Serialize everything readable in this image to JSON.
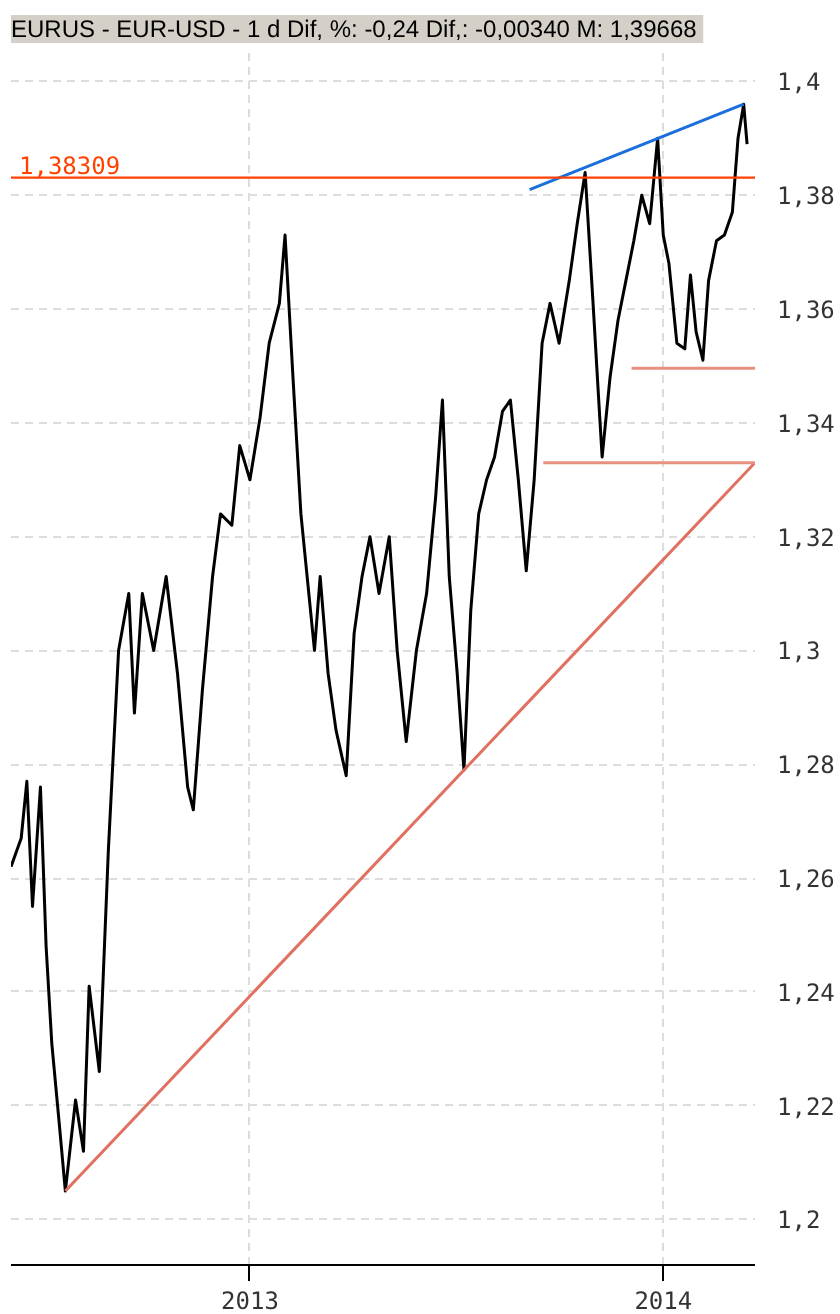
{
  "chart_data": {
    "type": "line",
    "title": "EURUS - EUR-USD -  1 d Dif, %: -0,24 Dif,: -0,00340 M: 1,39668",
    "x": [
      "2012-06-04",
      "2012-06-13",
      "2012-06-18",
      "2012-06-23",
      "2012-06-30",
      "2012-07-05",
      "2012-07-10",
      "2012-07-17",
      "2012-07-22",
      "2012-07-31",
      "2012-08-07",
      "2012-08-12",
      "2012-08-21",
      "2012-08-29",
      "2012-09-07",
      "2012-09-16",
      "2012-09-21",
      "2012-09-28",
      "2012-10-08",
      "2012-10-19",
      "2012-10-29",
      "2012-11-07",
      "2012-11-12",
      "2012-11-20",
      "2012-11-29",
      "2012-12-06",
      "2012-12-16",
      "2012-12-23",
      "2013-01-01",
      "2013-01-10",
      "2013-01-18",
      "2013-01-27",
      "2013-02-01",
      "2013-02-08",
      "2013-02-15",
      "2013-02-22",
      "2013-02-27",
      "2013-03-04",
      "2013-03-11",
      "2013-03-18",
      "2013-03-27",
      "2013-04-03",
      "2013-04-10",
      "2013-04-17",
      "2013-04-25",
      "2013-05-04",
      "2013-05-11",
      "2013-05-19",
      "2013-05-28",
      "2013-06-06",
      "2013-06-14",
      "2013-06-20",
      "2013-06-26",
      "2013-07-03",
      "2013-07-09",
      "2013-07-15",
      "2013-07-22",
      "2013-07-29",
      "2013-08-05",
      "2013-08-12",
      "2013-08-19",
      "2013-08-26",
      "2013-09-02",
      "2013-09-09",
      "2013-09-16",
      "2013-09-23",
      "2013-10-01",
      "2013-10-10",
      "2013-10-17",
      "2013-10-24",
      "2013-10-31",
      "2013-11-05",
      "2013-11-08",
      "2013-11-15",
      "2013-11-22",
      "2013-11-29",
      "2013-12-06",
      "2013-12-13",
      "2013-12-20",
      "2013-12-27",
      "2014-01-01",
      "2014-01-06",
      "2014-01-13",
      "2014-01-20",
      "2014-01-25",
      "2014-01-30",
      "2014-02-05",
      "2014-02-10",
      "2014-02-17",
      "2014-02-24",
      "2014-03-03",
      "2014-03-08",
      "2014-03-13",
      "2014-03-16"
    ],
    "series": [
      {
        "color": "#000000",
        "values": [
          1.262,
          1.267,
          1.277,
          1.255,
          1.276,
          1.248,
          1.231,
          1.216,
          1.205,
          1.221,
          1.212,
          1.241,
          1.226,
          1.265,
          1.3,
          1.31,
          1.289,
          1.31,
          1.3,
          1.313,
          1.296,
          1.276,
          1.272,
          1.293,
          1.313,
          1.324,
          1.322,
          1.336,
          1.33,
          1.341,
          1.354,
          1.361,
          1.373,
          1.348,
          1.324,
          1.31,
          1.3,
          1.313,
          1.296,
          1.286,
          1.278,
          1.303,
          1.313,
          1.32,
          1.31,
          1.32,
          1.3,
          1.284,
          1.3,
          1.31,
          1.327,
          1.344,
          1.313,
          1.296,
          1.279,
          1.307,
          1.324,
          1.33,
          1.334,
          1.342,
          1.344,
          1.33,
          1.314,
          1.33,
          1.354,
          1.361,
          1.354,
          1.365,
          1.375,
          1.384,
          1.361,
          1.344,
          1.334,
          1.348,
          1.358,
          1.365,
          1.372,
          1.38,
          1.375,
          1.39,
          1.373,
          1.368,
          1.354,
          1.353,
          1.366,
          1.356,
          1.351,
          1.365,
          1.372,
          1.373,
          1.377,
          1.39,
          1.396,
          1.389
        ]
      },
      {
        "color": "#e07060",
        "x": [
          "2012-07-22",
          "2014-03-23"
        ],
        "values": [
          1.205,
          1.333
        ]
      },
      {
        "color": "#1a6fdc",
        "x": [
          "2013-09-05",
          "2014-03-13"
        ],
        "values": [
          1.381,
          1.396
        ]
      },
      {
        "color": "#e89080",
        "x": [
          "2013-09-17",
          "2014-03-23"
        ],
        "values": [
          1.333,
          1.333
        ]
      },
      {
        "color": "#e89080",
        "x": [
          "2013-12-04",
          "2014-03-23"
        ],
        "values": [
          1.3496,
          1.3496
        ]
      }
    ],
    "ref_lines": [
      {
        "axis": "y",
        "value": 1.38309,
        "label": "1,38309",
        "color": "#ff4000"
      }
    ],
    "xlim": [
      "2012-06-04",
      "2014-03-23"
    ],
    "ylim": [
      1.192,
      1.405
    ],
    "xticks": [
      {
        "value": "2013-01-01",
        "label": "2013"
      },
      {
        "value": "2014-01-01",
        "label": "2014"
      }
    ],
    "yticks": [
      {
        "value": 1.2,
        "label": "1,2"
      },
      {
        "value": 1.22,
        "label": "1,22"
      },
      {
        "value": 1.24,
        "label": "1,24"
      },
      {
        "value": 1.26,
        "label": "1,26"
      },
      {
        "value": 1.28,
        "label": "1,28"
      },
      {
        "value": 1.3,
        "label": "1,3"
      },
      {
        "value": 1.32,
        "label": "1,32"
      },
      {
        "value": 1.34,
        "label": "1,34"
      },
      {
        "value": 1.36,
        "label": "1,36"
      },
      {
        "value": 1.38,
        "label": "1,38"
      },
      {
        "value": 1.4,
        "label": "1,4"
      }
    ],
    "grid": true
  }
}
